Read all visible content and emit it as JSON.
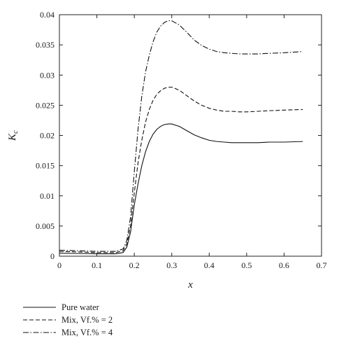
{
  "chart_data": {
    "type": "line",
    "xlabel": "x",
    "ylabel": "K",
    "ylabel_subscript": "c",
    "xlim": [
      0,
      0.7
    ],
    "ylim": [
      0,
      0.04
    ],
    "x_ticks": [
      0,
      0.1,
      0.2,
      0.3,
      0.4,
      0.5,
      0.6,
      0.7
    ],
    "x_tick_labels": [
      "0",
      "0.1",
      "0.2",
      "0.3",
      "0.4",
      "0.5",
      "0.6",
      "0.7"
    ],
    "y_ticks": [
      0,
      0.005,
      0.01,
      0.015,
      0.02,
      0.025,
      0.03,
      0.035,
      0.04
    ],
    "y_tick_labels": [
      "0",
      "0.005",
      "0.01",
      "0.015",
      "0.02",
      "0.025",
      "0.03",
      "0.035",
      "0.04"
    ],
    "grid": false,
    "legend_position": "bottom-left, below plot",
    "series": [
      {
        "name": "Pure water",
        "line_style": "solid",
        "color": "#111111",
        "x": [
          0.0,
          0.05,
          0.1,
          0.15,
          0.17,
          0.18,
          0.19,
          0.2,
          0.21,
          0.22,
          0.23,
          0.24,
          0.25,
          0.26,
          0.27,
          0.28,
          0.29,
          0.3,
          0.32,
          0.34,
          0.36,
          0.38,
          0.4,
          0.42,
          0.44,
          0.46,
          0.48,
          0.5,
          0.53,
          0.56,
          0.6,
          0.65
        ],
        "y": [
          0.0005,
          0.00045,
          0.0004,
          0.0004,
          0.0006,
          0.0015,
          0.004,
          0.0085,
          0.012,
          0.015,
          0.0173,
          0.019,
          0.0202,
          0.021,
          0.0215,
          0.0218,
          0.0219,
          0.0219,
          0.0215,
          0.0208,
          0.0201,
          0.0196,
          0.0192,
          0.019,
          0.0189,
          0.0188,
          0.0188,
          0.0188,
          0.0188,
          0.0189,
          0.0189,
          0.019
        ]
      },
      {
        "name": "Mix, Vf.% = 2",
        "line_style": "dashed",
        "color": "#111111",
        "x": [
          0.0,
          0.05,
          0.1,
          0.15,
          0.17,
          0.18,
          0.19,
          0.2,
          0.21,
          0.22,
          0.23,
          0.24,
          0.25,
          0.26,
          0.27,
          0.28,
          0.29,
          0.3,
          0.32,
          0.34,
          0.36,
          0.38,
          0.4,
          0.42,
          0.44,
          0.46,
          0.48,
          0.5,
          0.53,
          0.56,
          0.6,
          0.65
        ],
        "y": [
          0.0008,
          0.0007,
          0.0006,
          0.0006,
          0.0009,
          0.002,
          0.005,
          0.0105,
          0.0155,
          0.0192,
          0.0222,
          0.0243,
          0.0258,
          0.0268,
          0.0274,
          0.0278,
          0.028,
          0.028,
          0.0275,
          0.0266,
          0.0257,
          0.025,
          0.0245,
          0.0242,
          0.024,
          0.024,
          0.0239,
          0.0239,
          0.024,
          0.0241,
          0.0242,
          0.0243
        ]
      },
      {
        "name": "Mix, Vf.% = 4",
        "line_style": "dash-dot",
        "color": "#111111",
        "x": [
          0.0,
          0.05,
          0.1,
          0.15,
          0.17,
          0.18,
          0.19,
          0.2,
          0.21,
          0.22,
          0.23,
          0.24,
          0.25,
          0.26,
          0.27,
          0.28,
          0.29,
          0.3,
          0.32,
          0.34,
          0.36,
          0.38,
          0.4,
          0.42,
          0.44,
          0.46,
          0.48,
          0.5,
          0.53,
          0.56,
          0.6,
          0.65
        ],
        "y": [
          0.001,
          0.0009,
          0.0008,
          0.0008,
          0.0012,
          0.0026,
          0.0065,
          0.014,
          0.021,
          0.0265,
          0.0305,
          0.0333,
          0.0355,
          0.0371,
          0.0381,
          0.0387,
          0.039,
          0.039,
          0.0383,
          0.0371,
          0.0358,
          0.0349,
          0.0343,
          0.0339,
          0.0337,
          0.0336,
          0.0335,
          0.0335,
          0.0335,
          0.0336,
          0.0337,
          0.0339
        ]
      }
    ]
  }
}
